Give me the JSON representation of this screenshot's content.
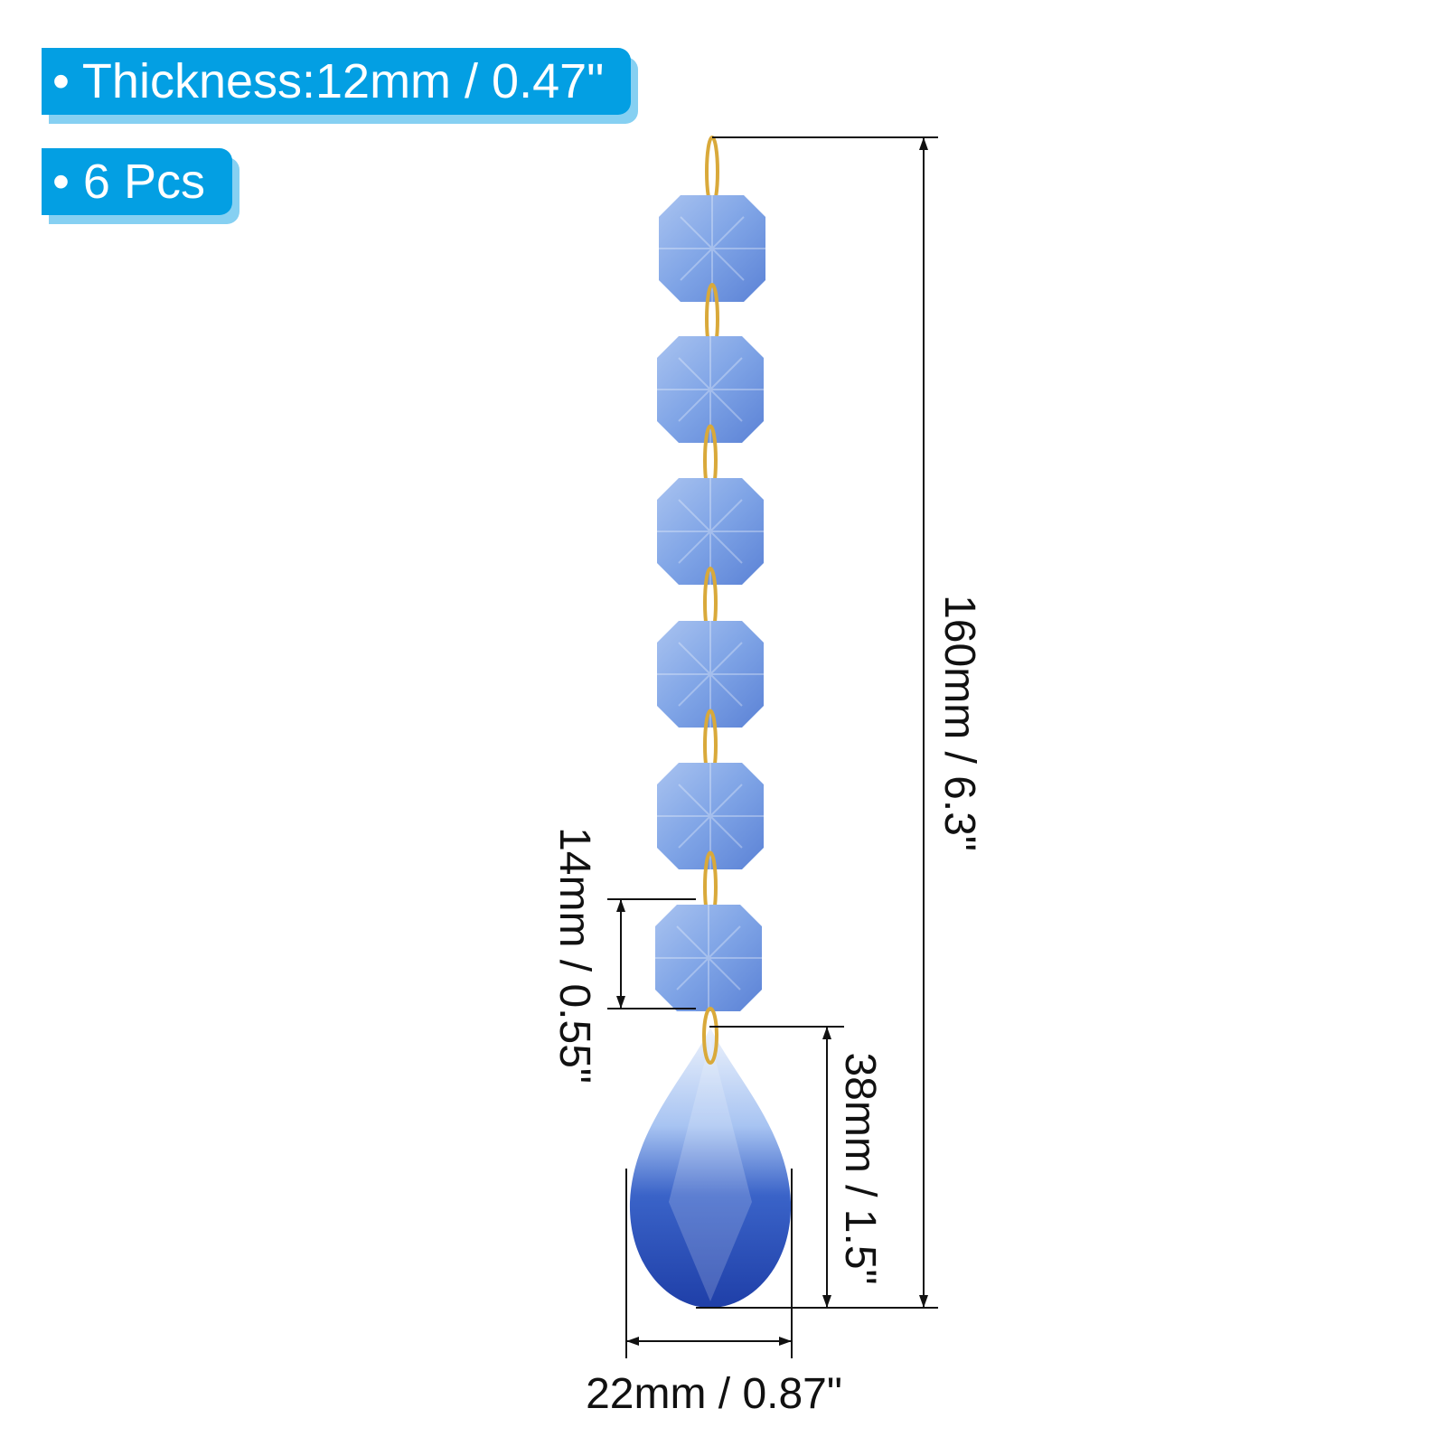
{
  "labels": {
    "thickness": "• Thickness:12mm / 0.47\"",
    "pieces": "• 6 Pcs"
  },
  "dimensions": {
    "total_length": "160mm / 6.3\"",
    "octagon_size": "14mm / 0.55\"",
    "drop_length": "38mm / 1.5\"",
    "drop_width": "22mm / 0.87\""
  },
  "colors": {
    "label_bg": "#039fe3",
    "label_shadow": "#86d0f2",
    "crystal_light": "#7fa4e6",
    "crystal_dark": "#1f3fa8",
    "ring": "#d9a93a"
  }
}
